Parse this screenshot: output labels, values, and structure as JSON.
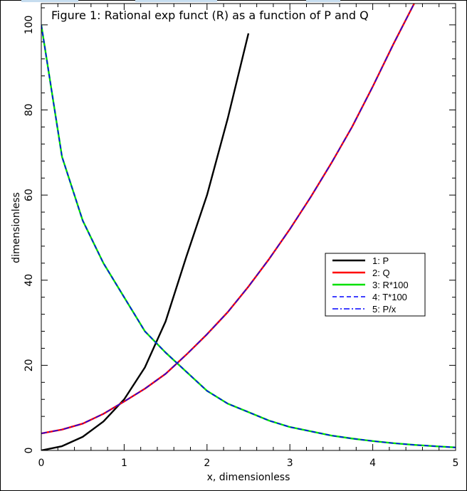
{
  "chart_data": {
    "type": "line",
    "title": "Figure 1: Rational exp funct (R) as a function of P and Q",
    "xlabel": "x, dimensionless",
    "ylabel": "dimensionless",
    "xlim": [
      0,
      5
    ],
    "ylim": [
      0,
      105
    ],
    "xticks": [
      0,
      1,
      2,
      3,
      4,
      5
    ],
    "yticks": [
      0,
      20,
      40,
      60,
      80,
      100
    ],
    "grid": false,
    "legend_position": "right",
    "x": [
      0,
      0.25,
      0.5,
      0.75,
      1.0,
      1.25,
      1.5,
      1.75,
      2.0,
      2.25,
      2.5,
      2.75,
      3.0,
      3.25,
      3.5,
      3.75,
      4.0,
      4.25,
      4.5,
      4.75,
      5.0
    ],
    "series": [
      {
        "name": "1: P",
        "color": "#000000",
        "style": "solid",
        "values": [
          0,
          1.0,
          3.2,
          6.8,
          12.0,
          19.5,
          30.3,
          45.5,
          60.0,
          78.0,
          98.0,
          null,
          null,
          null,
          null,
          null,
          null,
          null,
          null,
          null,
          null
        ]
      },
      {
        "name": "2: Q",
        "color": "#ff0000",
        "style": "solid",
        "values": [
          4.0,
          4.9,
          6.3,
          8.6,
          11.5,
          14.5,
          18.0,
          22.5,
          27.3,
          32.5,
          38.5,
          45.0,
          52.0,
          59.5,
          67.5,
          76.0,
          85.5,
          95.5,
          105.0,
          null,
          null
        ]
      },
      {
        "name": "3: R*100",
        "color": "#00e000",
        "style": "solid",
        "values": [
          100,
          69.0,
          54.0,
          44.0,
          36.0,
          28.0,
          23.0,
          18.5,
          14.0,
          11.0,
          9.0,
          7.0,
          5.5,
          4.5,
          3.5,
          2.8,
          2.2,
          1.7,
          1.3,
          1.0,
          0.7
        ]
      },
      {
        "name": "4: T*100",
        "color": "#0000ff",
        "style": "dashed",
        "values": [
          100,
          69.0,
          54.0,
          44.0,
          36.0,
          28.0,
          23.0,
          18.5,
          14.0,
          11.0,
          9.0,
          7.0,
          5.5,
          4.5,
          3.5,
          2.8,
          2.2,
          1.7,
          1.3,
          1.0,
          0.7
        ]
      },
      {
        "name": "5: P/x",
        "color": "#0000ff",
        "style": "dashdot",
        "values": [
          4.0,
          4.9,
          6.3,
          8.6,
          11.5,
          14.5,
          18.0,
          22.5,
          27.3,
          32.5,
          38.5,
          45.0,
          52.0,
          59.5,
          67.5,
          76.0,
          85.5,
          95.5,
          105.0,
          null,
          null
        ]
      }
    ]
  }
}
